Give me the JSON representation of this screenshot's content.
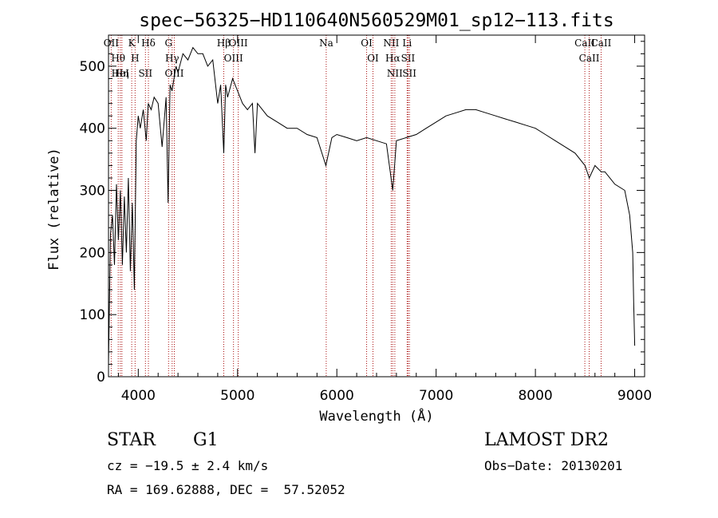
{
  "chart_data": {
    "type": "line",
    "title": "spec−56325−HD110640N560529M01_sp12−113.fits",
    "xlabel": "Wavelength (Å)",
    "ylabel": "Flux (relative)",
    "xlim": [
      3700,
      9100
    ],
    "ylim": [
      0,
      550
    ],
    "xticks": [
      4000,
      5000,
      6000,
      7000,
      8000,
      9000
    ],
    "yticks": [
      0,
      100,
      200,
      300,
      400,
      500
    ],
    "grid": false,
    "line_color": "#000000",
    "marker_color": "#aa1111",
    "series": [
      {
        "x": [
          3700,
          3720,
          3740,
          3760,
          3780,
          3800,
          3820,
          3840,
          3860,
          3880,
          3900,
          3920,
          3940,
          3960,
          3980,
          4000,
          4020,
          4050,
          4080,
          4100,
          4130,
          4160,
          4200,
          4240,
          4280,
          4300,
          4320,
          4340,
          4360,
          4380,
          4400,
          4450,
          4500,
          4550,
          4600,
          4650,
          4700,
          4750,
          4800,
          4830,
          4861,
          4880,
          4900,
          4950,
          5000,
          5050,
          5100,
          5150,
          5175,
          5200,
          5300,
          5400,
          5500,
          5600,
          5700,
          5800,
          5890,
          5950,
          6000,
          6100,
          6200,
          6300,
          6400,
          6500,
          6563,
          6600,
          6700,
          6800,
          6900,
          7000,
          7100,
          7200,
          7300,
          7400,
          7500,
          7600,
          7700,
          7800,
          7900,
          8000,
          8100,
          8200,
          8300,
          8400,
          8500,
          8542,
          8600,
          8662,
          8700,
          8800,
          8900,
          8950,
          8980,
          8990,
          9000
        ],
        "y": [
          20,
          230,
          260,
          180,
          310,
          220,
          300,
          180,
          290,
          200,
          320,
          170,
          280,
          140,
          380,
          420,
          400,
          430,
          380,
          440,
          430,
          450,
          440,
          370,
          450,
          280,
          470,
          460,
          480,
          500,
          490,
          520,
          510,
          530,
          520,
          520,
          500,
          510,
          440,
          470,
          360,
          470,
          450,
          480,
          460,
          440,
          430,
          440,
          360,
          440,
          420,
          410,
          400,
          400,
          390,
          385,
          340,
          385,
          390,
          385,
          380,
          385,
          380,
          375,
          300,
          380,
          385,
          390,
          400,
          410,
          420,
          425,
          430,
          430,
          425,
          420,
          415,
          410,
          405,
          400,
          390,
          380,
          370,
          360,
          340,
          320,
          340,
          330,
          330,
          310,
          300,
          260,
          200,
          120,
          50
        ]
      }
    ],
    "lines": [
      {
        "name": "Hθ",
        "wavelength": 3798
      },
      {
        "name": "HeI",
        "wavelength": 3819
      },
      {
        "name": "OII",
        "wavelength": 3727
      },
      {
        "name": "Hη",
        "wavelength": 3835
      },
      {
        "name": "K",
        "wavelength": 3934
      },
      {
        "name": "H",
        "wavelength": 3968
      },
      {
        "name": "SII",
        "wavelength": 4072
      },
      {
        "name": "Hδ",
        "wavelength": 4102
      },
      {
        "name": "OIII",
        "wavelength": 4363
      },
      {
        "name": "Hγ",
        "wavelength": 4341
      },
      {
        "name": "G",
        "wavelength": 4305
      },
      {
        "name": "Hβ",
        "wavelength": 4861
      },
      {
        "name": "OIII",
        "wavelength": 4959
      },
      {
        "name": "OIII",
        "wavelength": 5007
      },
      {
        "name": "Na",
        "wavelength": 5893
      },
      {
        "name": "OI",
        "wavelength": 6300
      },
      {
        "name": "OI",
        "wavelength": 6364
      },
      {
        "name": "NII",
        "wavelength": 6548
      },
      {
        "name": "Hα",
        "wavelength": 6563
      },
      {
        "name": "NII",
        "wavelength": 6584
      },
      {
        "name": "SII",
        "wavelength": 6717
      },
      {
        "name": "Li",
        "wavelength": 6708
      },
      {
        "name": "SII",
        "wavelength": 6731
      },
      {
        "name": "CaII",
        "wavelength": 8498
      },
      {
        "name": "CaII",
        "wavelength": 8542
      },
      {
        "name": "CaII",
        "wavelength": 8662
      }
    ]
  },
  "info": {
    "class_label": "STAR",
    "subclass": "G1",
    "survey": "LAMOST DR2",
    "cz": "cz = −19.5 ± 2.4 km/s",
    "obs_date": "Obs−Date: 20130201",
    "coords": "RA = 169.62888, DEC =  57.52052"
  }
}
